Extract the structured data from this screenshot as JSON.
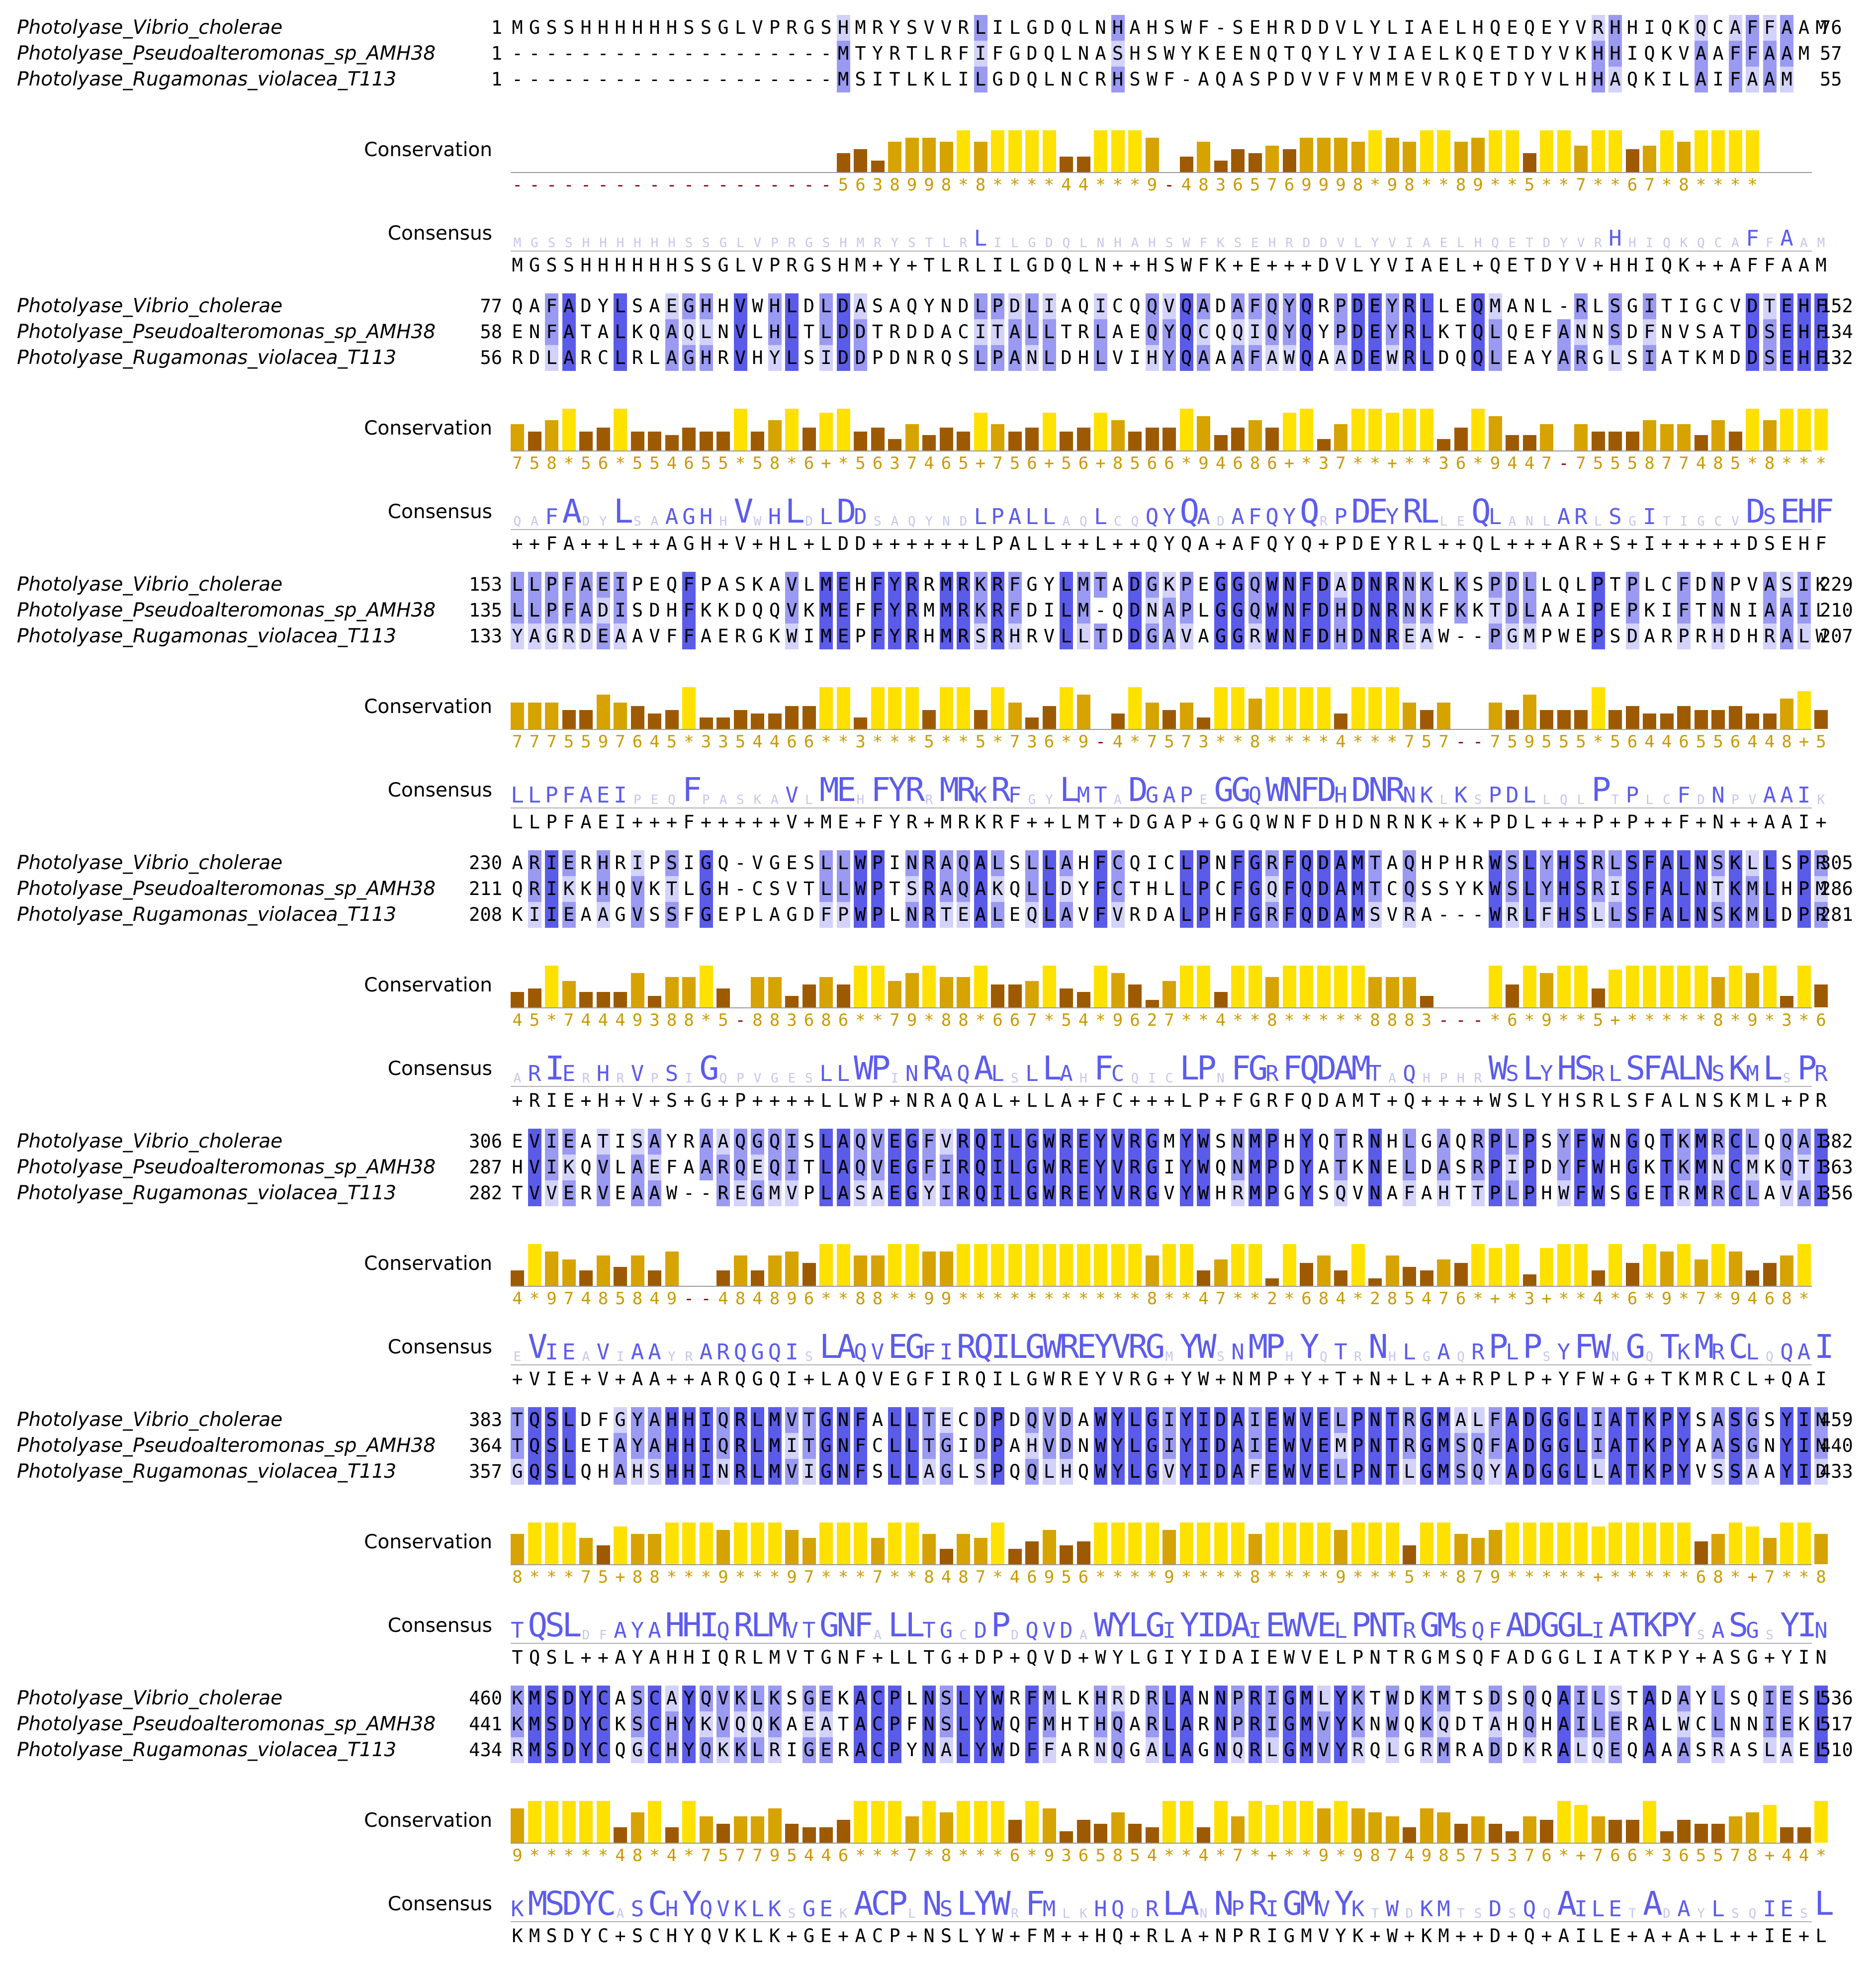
{
  "sequence_names": [
    "Photolyase_Vibrio_cholerae",
    "Photolyase_Pseudoalteromonas_sp_AMH38",
    "Photolyase_Rugamonas_violacea_T113"
  ],
  "annotation_labels": {
    "conservation": "Conservation",
    "consensus": "Consensus"
  },
  "colors": {
    "id_strong": "#5b5bea",
    "id_medium": "#9a9af2",
    "id_light": "#d2d2fa",
    "cons_high": "#ffe100",
    "cons_mid": "#d7a300",
    "cons_low": "#9e5a00",
    "score_text": "#c99a00",
    "score_dash": "#8b0000",
    "consensus_strong": "#5c5ced",
    "consensus_faint": "#c6c6ee"
  },
  "blocks": [
    {
      "starts": [
        "1",
        "1",
        "1"
      ],
      "ends": [
        "76",
        "57",
        "55"
      ],
      "seqs": [
        "MGSSHHHHHHSSGLVPRGSHMRYSVVRLILGDQLNHAHSWF-SEHRDDVLYLIAELHQEQEYVRHHIQKQCAFFAAM",
        "-------------------MTYRTLRFIFGDQLNASHSWYKEENQTQYLYVIAELKQETDYVKHHIQKVAAFFAAM",
        "-------------------MSITLKLILGDQLNCRHSWF-AQASPDVVFVMMEVRQETDYVLHHAQKILAIFAAM"
      ],
      "conservation": "-------------------563899 8*8****44***9-4836576999 8*98**89**5**7**67*8****",
      "consensus": "MGSSHHHHHHSSGLVPRGSHM+Y+TLRLILGDQLN++HSWFK+E+++DVLYVIAEL+QETDYV+HHIQK++AFFAAM"
    },
    {
      "starts": [
        "77",
        "58",
        "56"
      ],
      "ends": [
        "152",
        "134",
        "132"
      ],
      "seqs": [
        "QAFADYLSAEGHHVWHLDLDASAQYNDLPDLIAQICQQVQADAFQYQRPDEYRLLEQMANL-RLSGITIGCVDTEHF",
        "ENFATALKQAQLNVLHLTLDDTRDDACITALLTRLAEQYQCQQIQYQYPDEYRLKTQLQEFANNSDFNVSATDSEHF",
        "RDLARCLRLAGHRVHYLSIDDPDNRQSLPANLDHLVIHYQAAAFAWQAADEWRLDQQLEAYARGLSIATKMDDSEHF"
      ],
      "conservation": "758*56*554655*58*6+*5637465+756+56+8566*94686+*37**+**36*9447-7555877485*8***",
      "consensus": "++FA++L++AGH+V+HL+LDD++++++LPALL++L++QYQA+AFQYQ+PDEYRL++QL+++AR+S+I+++++DSEHF"
    },
    {
      "starts": [
        "153",
        "135",
        "133"
      ],
      "ends": [
        "229",
        "210",
        "207"
      ],
      "seqs": [
        "LLPFAEIPEQFPASKAVLMEHFYRRMRKRFGYLMTADGKPEGGQWNFDADNRNKLKSPDLLQLPTPLCFDNPVASIK",
        "LLPFADISDHFKKDQQVKMEFFYRMMRKRFDILM-QDNAPLGGQWNFDHDNRNKFKKTDLAAIPEPKIFTNNIAAIL",
        "YAGRDEAAVFFAERGKWIMEPFYRHMRSRHRVLLTDDGAVAGGRWNFDHDNREAW--PGMPWEPSDARPRHDHRALW"
      ],
      "conservation": "77755976 45*3354466**3***5**5*736*9-4*7573**8****4***757--759555*56446556448+5",
      "consensus": "LLPFAEI+++F+++++V+ME+FYR+MRKRF++LMT+DGAP+GGQWNFDHDNRNK+K+PDL+++P+P++F+N++AAI+"
    },
    {
      "starts": [
        "230",
        "211",
        "208"
      ],
      "ends": [
        "305",
        "286",
        "281"
      ],
      "seqs": [
        "ARIERHRIPSIGQ-VGESLLWPINRAQALSLLAHFCQICLPNFGRFQDAMTAQHPHRWSLYHSRLSFALNSKLLSPR",
        "QRIKKHQVKTLGH-CSVTLLWPTSRAQAKQLLDYFCTHLLPCFGQFQDAMTCQSSYKWSLYHSRISFALNTKMLHPM",
        "KIIEAAGVSSFGEPLAGDFPWPLNRTEALEQLAVFVRDALPHFGRFQDAMSVRA---WRLFHSLLSFALNSKMLDPR"
      ],
      "conservation": "45*744493 88*5-883686**79*88*667*54*9627**4**8*****8883---*6*9**5+*****8*9*3*6",
      "consensus": "+RIE+H+V+S+G+P++++LLWP+NRAQAL+LLA+FC+++LP+FGRFQDAMT+Q++++WSLYHSRLSFALNSKML+PR"
    },
    {
      "starts": [
        "306",
        "287",
        "282"
      ],
      "ends": [
        "382",
        "363",
        "356"
      ],
      "seqs": [
        "EVIEATISAYRAAQGQISLAQVEGFVRQILGWREYVRGMYWSNMPHYQTRNHLGAQRPLPSYFWNGQTKMRCLQQAI",
        "HVIKQVLAEFAARQEQITLAQVEGFIRQILGWREYVRGIYWQNMPDYATKNELDASRPIPDYFWHGKTKMNCMKQTI",
        "TVVERVEAAW--REGMVPLASAEGYIRQILGWREYVRGVYWHRMPGYSQVNAFAHTTPLPHWFWSGETRMRCLAVAI"
      ],
      "conservation": "4*97485849--484896**88**99***********8**47**2*684*285476*+*3+**4*6*9*7*9468*",
      "consensus": "+VIE+V+AA++ARQGQI+LAQVEGFIRQILGWREYVRG+YW+NMP+Y+T+N+L+A+RPLP+YFW+G+TKMRCL+QAI"
    },
    {
      "starts": [
        "383",
        "364",
        "357"
      ],
      "ends": [
        "459",
        "440",
        "433"
      ],
      "seqs": [
        "TQSLDFGYAHHIQRLMVTGNFALLTECDPDQVDAWYLGIYIDAIEWVELPNTRGMALFADGGLIATKPYSASGSYIN",
        "TQSLETAYAHHIQRLMITGNFCLLTGIDPAHVDNWYLGIYIDAIEWVEMPNTRGMSQFADGGLIATKPYAASGNYIN",
        "GQSLQHAHSHHINRLMVIGNFSLLAGLSPQQLHQWYLGVYIDAFEWVELPNTLGMSQYADGGLLATKPYVSSAAYID"
      ],
      "conservation": "8***75+88***9***97***7**8487*46956****9****8****9***5**879*****+*****68*+7**8",
      "consensus": "TQSL++AYAHHIQRLMVTGNF+LLTG+DP+QVD+WYLGIYIDAIEWVELPNTRGMSQFADGGLIATKPY+ASG+YIN"
    },
    {
      "starts": [
        "460",
        "441",
        "434"
      ],
      "ends": [
        "536",
        "517",
        "510"
      ],
      "seqs": [
        "KMSDYCASCAYQVKLKSGEKACPLNSLYWRFMLKHRDRLANNPRIGMLYKTWDKMTSDSQQAILSTADAYLSQIESL",
        "KMSDYCKSCHYKVQQKAEATACPFNSLYWQFMHTHQARLARNPRIGMVYKNWQKQDTAHQHAILERALWCLNNIEKL",
        "RMSDYCQGCHYQKKLRIGERACPYNALYWDFFARNQGALAGNQRLGMVYRQLGRMRADDKRALQEQAAASRASLAEL"
      ],
      "conservation": "9*****48*4*757795446***7*8***6*9365854**4*7*+**9*987498575376*+766*365578+44*",
      "consensus": "KMSDYC+SCHYQVKLK+GE+ACP+NSLYW+FM++HQ+RLA+NPRIGMVYK+W+KM++D+Q+AILE+A+A+L++IE+L"
    }
  ]
}
